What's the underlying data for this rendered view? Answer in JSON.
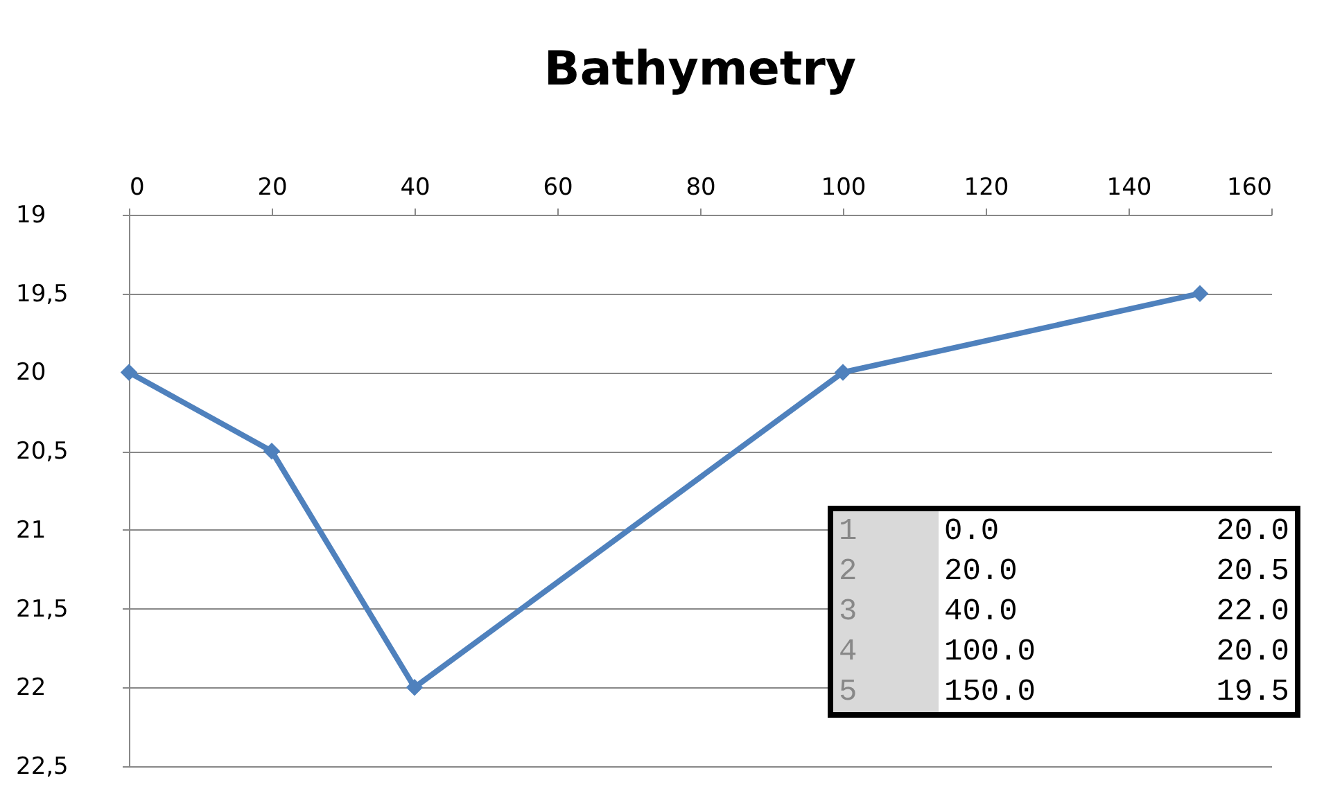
{
  "chart_data": {
    "type": "line",
    "title": "Bathymetry",
    "x": [
      0,
      20,
      40,
      100,
      150
    ],
    "series": [
      {
        "color": "#4f81bd",
        "values": [
          20,
          20.5,
          22,
          20,
          19.5
        ]
      }
    ],
    "xlim": [
      0,
      160
    ],
    "xticks": [
      0,
      20,
      40,
      60,
      80,
      100,
      120,
      140,
      160
    ],
    "ylim": [
      22.5,
      19
    ],
    "yticks": [
      19,
      {
        "value": 19.5,
        "label": "19,5"
      },
      20,
      {
        "value": 20.5,
        "label": "20,5"
      },
      21,
      {
        "value": 21.5,
        "label": "21,5"
      },
      22,
      {
        "value": 22.5,
        "label": "22,5"
      }
    ],
    "grid": "y",
    "marker": "diamond",
    "line_style": "solid",
    "annotations": [
      "1",
      "0.0",
      "20.0",
      "2",
      "20.0",
      "20.5",
      "3",
      "40.0",
      "22.0",
      "4",
      "100.0",
      "20.0",
      "5",
      "150.0",
      "19.5"
    ]
  }
}
